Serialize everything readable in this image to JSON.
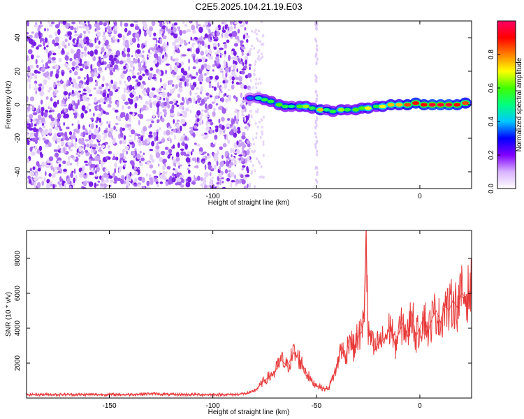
{
  "title": "C2E5.2025.104.21.19.E03",
  "chart_data": [
    {
      "type": "heatmap",
      "name": "spectrogram",
      "xlabel": "Height of straight line (km)",
      "ylabel": "Frequency (Hz)",
      "xlim": [
        -190,
        25
      ],
      "ylim": [
        -50,
        50
      ],
      "x_ticks": [
        -150,
        -100,
        -50,
        0
      ],
      "y_ticks": [
        -40,
        -20,
        0,
        20,
        40
      ],
      "colorbar": {
        "label": "Normalized spectral amplitude",
        "range": [
          0.0,
          1.0
        ],
        "ticks": [
          0.0,
          0.2,
          0.4,
          0.6,
          0.8
        ],
        "colormap": [
          "#ffffff",
          "#d9b3ff",
          "#8000ff",
          "#0000ff",
          "#00c8ff",
          "#00ff80",
          "#40ff00",
          "#ffff00",
          "#ff8000",
          "#ff0000",
          "#ff0066"
        ]
      },
      "noise_region_x": [
        -190,
        -82
      ],
      "signal_track": [
        {
          "x": -82,
          "y": 4,
          "amp": 0.35
        },
        {
          "x": -78,
          "y": 4,
          "amp": 0.45
        },
        {
          "x": -75,
          "y": 3,
          "amp": 0.55
        },
        {
          "x": -72,
          "y": 2,
          "amp": 0.55
        },
        {
          "x": -68,
          "y": 0,
          "amp": 0.6
        },
        {
          "x": -65,
          "y": -1,
          "amp": 0.55
        },
        {
          "x": -62,
          "y": -1,
          "amp": 0.5
        },
        {
          "x": -58,
          "y": -1,
          "amp": 0.6
        },
        {
          "x": -55,
          "y": -1,
          "amp": 0.65
        },
        {
          "x": -52,
          "y": -2,
          "amp": 0.55
        },
        {
          "x": -48,
          "y": -3,
          "amp": 0.75
        },
        {
          "x": -45,
          "y": -3,
          "amp": 0.5
        },
        {
          "x": -42,
          "y": -4,
          "amp": 0.55
        },
        {
          "x": -38,
          "y": -3,
          "amp": 0.65
        },
        {
          "x": -35,
          "y": -3,
          "amp": 0.55
        },
        {
          "x": -31,
          "y": -3,
          "amp": 0.6
        },
        {
          "x": -28,
          "y": -2,
          "amp": 0.6
        },
        {
          "x": -25,
          "y": -2,
          "amp": 0.7
        },
        {
          "x": -21,
          "y": -1,
          "amp": 0.55
        },
        {
          "x": -18,
          "y": -1,
          "amp": 0.7
        },
        {
          "x": -14,
          "y": 0,
          "amp": 0.75
        },
        {
          "x": -10,
          "y": 0,
          "amp": 0.75
        },
        {
          "x": -6,
          "y": 0,
          "amp": 0.85
        },
        {
          "x": -2,
          "y": 1,
          "amp": 0.9
        },
        {
          "x": 2,
          "y": 0,
          "amp": 0.9
        },
        {
          "x": 6,
          "y": 0,
          "amp": 0.95
        },
        {
          "x": 10,
          "y": 0,
          "amp": 0.95
        },
        {
          "x": 14,
          "y": 0,
          "amp": 0.95
        },
        {
          "x": 18,
          "y": 0,
          "amp": 0.9
        },
        {
          "x": 22,
          "y": 1,
          "amp": 0.85
        }
      ]
    },
    {
      "type": "line",
      "name": "snr",
      "xlabel": "Height of straight line (km)",
      "ylabel": "SNR (10 * v/v)",
      "xlim": [
        -190,
        25
      ],
      "ylim": [
        0,
        9600
      ],
      "x_ticks": [
        -150,
        -100,
        -50,
        0
      ],
      "y_ticks": [
        2000,
        4000,
        6000,
        8000
      ],
      "color": "#e83a3a",
      "x": [
        -190,
        -180,
        -170,
        -160,
        -150,
        -140,
        -130,
        -120,
        -110,
        -100,
        -95,
        -90,
        -85,
        -82,
        -79,
        -76,
        -73,
        -70,
        -67,
        -64,
        -61,
        -58,
        -55,
        -52,
        -49,
        -46,
        -44,
        -42,
        -40,
        -38,
        -36,
        -34,
        -32,
        -30,
        -28,
        -27,
        -26,
        -25,
        -24,
        -22,
        -20,
        -18,
        -16,
        -14,
        -12,
        -10,
        -8,
        -6,
        -4,
        -2,
        0,
        2,
        4,
        6,
        8,
        10,
        12,
        14,
        16,
        18,
        20,
        22,
        25
      ],
      "y": [
        200,
        200,
        200,
        200,
        200,
        200,
        250,
        200,
        200,
        200,
        200,
        200,
        250,
        300,
        500,
        900,
        1200,
        1500,
        2200,
        1800,
        2600,
        2200,
        1500,
        900,
        700,
        500,
        600,
        1200,
        1800,
        3000,
        2200,
        3600,
        2800,
        3500,
        3800,
        4500,
        9600,
        3500,
        3600,
        2700,
        3200,
        3300,
        3600,
        4200,
        3000,
        3800,
        4300,
        3500,
        5000,
        3500,
        4000,
        4700,
        3800,
        4600,
        5000,
        4300,
        5400,
        5000,
        5600,
        5200,
        6000,
        5800,
        6300
      ]
    }
  ]
}
